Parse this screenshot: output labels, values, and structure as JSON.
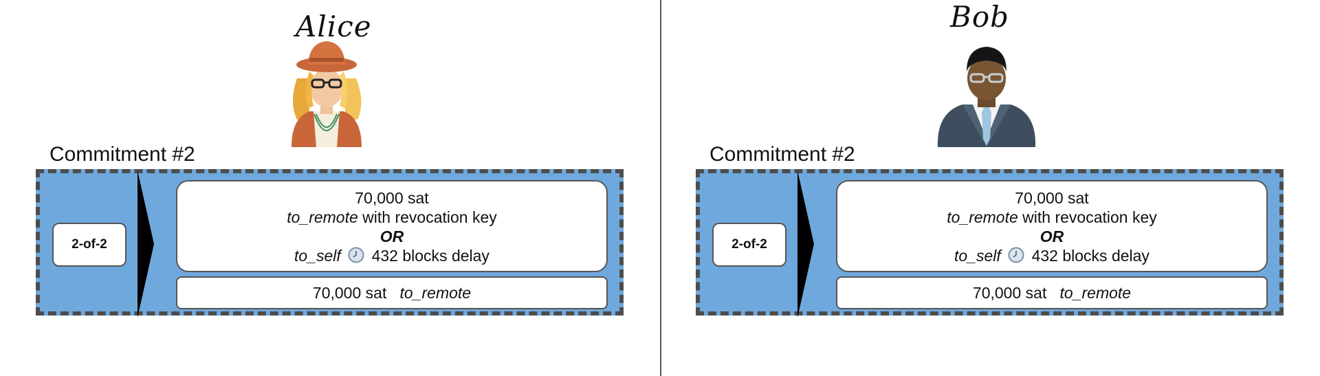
{
  "parties": [
    {
      "name": "Alice",
      "commitment_title": "Commitment #2",
      "funding_label": "2-of-2",
      "output1": {
        "amount": "70,000 sat",
        "line2_italic": "to_remote",
        "line2_rest": " with revocation key",
        "or": "OR",
        "line4_italic": "to_self",
        "delay": "432 blocks delay",
        "icon": "clock-icon"
      },
      "output2": {
        "amount": "70,000 sat",
        "label": "to_remote"
      }
    },
    {
      "name": "Bob",
      "commitment_title": "Commitment #2",
      "funding_label": "2-of-2",
      "output1": {
        "amount": "70,000 sat",
        "line2_italic": "to_remote",
        "line2_rest": " with revocation key",
        "or": "OR",
        "line4_italic": "to_self",
        "delay": "432 blocks delay",
        "icon": "clock-icon"
      },
      "output2": {
        "amount": "70,000 sat",
        "label": "to_remote"
      }
    }
  ],
  "colors": {
    "frame": "#6fa8dc",
    "frame_border": "#4d4d4d",
    "divider": "#555555"
  }
}
